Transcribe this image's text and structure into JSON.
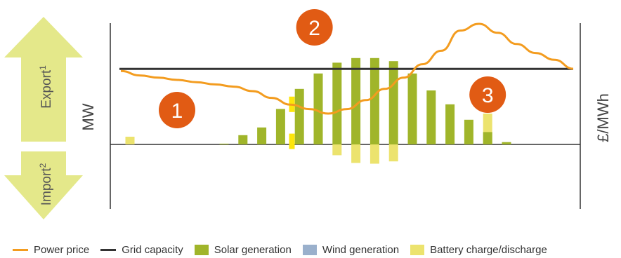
{
  "chart_data": {
    "type": "bar",
    "title": "",
    "left_axis_label": "MW",
    "right_axis_label": "£/MWh",
    "export_arrow": {
      "label": "Export",
      "sup": "1"
    },
    "import_arrow": {
      "label": "Import",
      "sup": "2"
    },
    "callouts": [
      {
        "label": "1",
        "slot": 2.5
      },
      {
        "label": "2",
        "slot": 9.8
      },
      {
        "label": "3",
        "slot": 19.0
      }
    ],
    "solar_generation": [
      0,
      0,
      0,
      0,
      0,
      0.05,
      0.6,
      1.1,
      2.3,
      3.6,
      4.6,
      5.3,
      5.6,
      5.6,
      5.4,
      4.6,
      3.5,
      2.6,
      1.6,
      0.8,
      0.15,
      0,
      0,
      0,
      0
    ],
    "battery_charge_discharge": [
      0.5,
      0,
      0,
      0,
      0,
      0,
      0,
      0,
      0,
      0,
      0,
      -0.7,
      -1.2,
      -1.25,
      -1.1,
      0,
      0,
      0,
      0,
      2.0,
      0,
      0,
      0,
      0,
      0
    ],
    "battery_highlight": [
      {
        "slot": 8.6,
        "from": 2.1,
        "to": 3.1
      },
      {
        "slot": 8.6,
        "from": -0.3,
        "to": 0.7
      }
    ],
    "grid_capacity": 4.9,
    "power_price": [
      59,
      57,
      56,
      55,
      54,
      53,
      52,
      50,
      47,
      44,
      42,
      40,
      42,
      46,
      51,
      56,
      62,
      68,
      77,
      80,
      76,
      71,
      67,
      64,
      60
    ],
    "mw_range": [
      -4.0,
      7.5
    ],
    "legend": [
      {
        "label": "Power price",
        "color": "#f39c1f",
        "kind": "line"
      },
      {
        "label": "Grid capacity",
        "color": "#333333",
        "kind": "line"
      },
      {
        "label": "Solar generation",
        "color": "#a0b52a",
        "kind": "box"
      },
      {
        "label": "Wind generation",
        "color": "#9ab0cc",
        "kind": "box"
      },
      {
        "label": "Battery charge/discharge",
        "color": "#ece36e",
        "kind": "box"
      }
    ],
    "colors": {
      "accent": "#e15b14",
      "arrow": "#e4e88a",
      "highlight": "#fde60a"
    }
  }
}
